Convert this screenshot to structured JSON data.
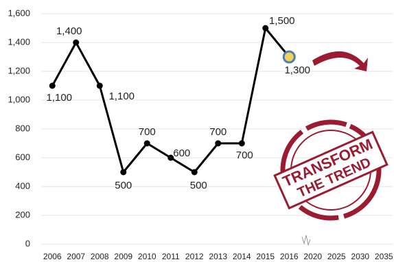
{
  "chart_data": {
    "type": "line",
    "categories": [
      "2006",
      "2007",
      "2008",
      "2009",
      "2010",
      "2011",
      "2012",
      "2013",
      "2014",
      "2015",
      "2016",
      "2020",
      "2025",
      "2030",
      "2035"
    ],
    "series": [
      {
        "color": "#000000",
        "values": [
          1100,
          1400,
          1100,
          500,
          700,
          600,
          500,
          700,
          700,
          1500,
          1300,
          null,
          null,
          null,
          null
        ],
        "value_labels": [
          "1,100",
          "1,400",
          "1,100",
          "500",
          "700",
          "600",
          "500",
          "700",
          "700",
          "1,500",
          "1,300",
          null,
          null,
          null,
          null
        ]
      }
    ],
    "ylim": [
      0,
      1600
    ],
    "yticks": [
      0,
      200,
      400,
      600,
      800,
      {
        "value": 1000,
        "label": "1,000"
      },
      {
        "value": 1200,
        "label": "1,200"
      },
      {
        "value": 1400,
        "label": "1,400"
      },
      {
        "value": 1600,
        "label": "1,600"
      }
    ],
    "grid": true,
    "annotations": [
      "TRANSFORM",
      "THE TREND"
    ]
  }
}
